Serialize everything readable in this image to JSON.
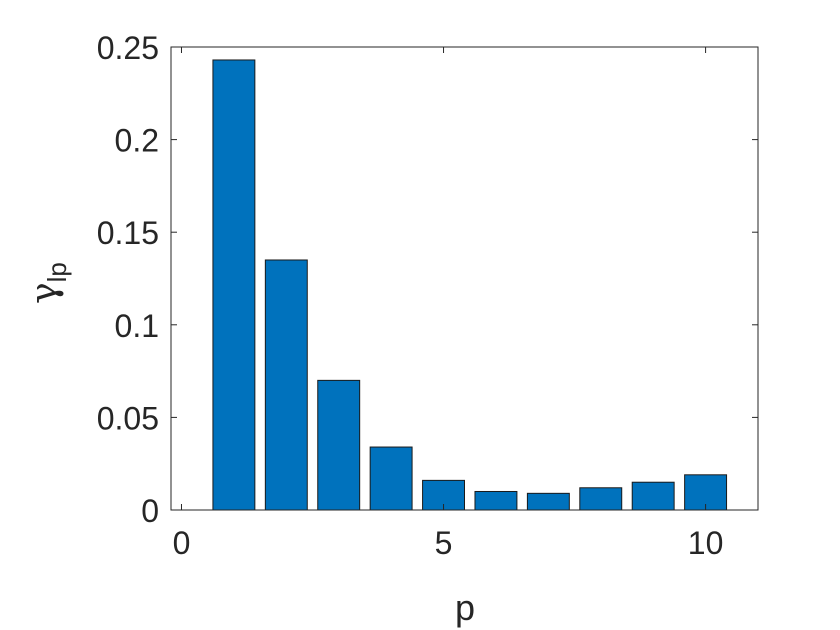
{
  "chart_data": {
    "type": "bar",
    "x": [
      1,
      2,
      3,
      4,
      5,
      6,
      7,
      8,
      9,
      10
    ],
    "values": [
      0.243,
      0.135,
      0.07,
      0.034,
      0.016,
      0.01,
      0.009,
      0.012,
      0.015,
      0.019
    ],
    "xlabel": "p",
    "ylabel_main": "γ",
    "ylabel_sub": "lp",
    "xlim": [
      -0.2,
      11
    ],
    "ylim": [
      0,
      0.25
    ],
    "xticks": [
      0,
      5,
      10
    ],
    "xtick_labels": [
      "0",
      "5",
      "10"
    ],
    "yticks": [
      0,
      0.05,
      0.1,
      0.15,
      0.2,
      0.25
    ],
    "ytick_labels": [
      "0",
      "0.05",
      "0.1",
      "0.15",
      "0.2",
      "0.25"
    ],
    "bar_color": "#0072BD",
    "grid": false,
    "legend": "none"
  }
}
